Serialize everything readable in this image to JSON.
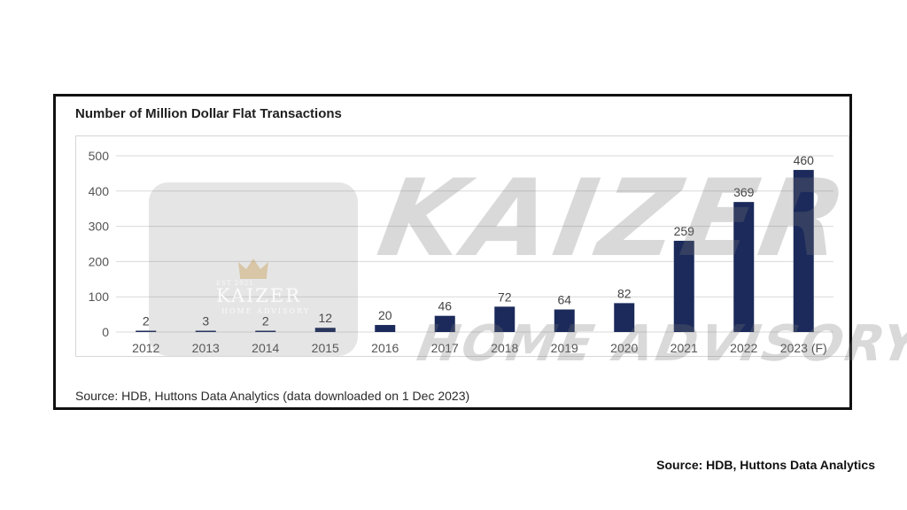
{
  "chart_data": {
    "type": "bar",
    "title": "Number of Million Dollar Flat Transactions",
    "categories": [
      "2012",
      "2013",
      "2014",
      "2015",
      "2016",
      "2017",
      "2018",
      "2019",
      "2020",
      "2021",
      "2022",
      "2023 (F)"
    ],
    "values": [
      2,
      3,
      2,
      12,
      20,
      46,
      72,
      64,
      82,
      259,
      369,
      460
    ],
    "yticks": [
      "0",
      "100",
      "200",
      "300",
      "400",
      "500"
    ],
    "ylim": [
      0,
      500
    ],
    "grid": true,
    "legend": "none",
    "bar_color": "#1b2a5a",
    "source": "Source: HDB, Huttons Data Analytics (data downloaded on 1 Dec 2023)"
  },
  "caption": "Source: HDB, Huttons Data Analytics",
  "watermark": {
    "brand": "KAIZER",
    "sub": "HOME ADVISORY",
    "est": "EST    2021",
    "big": "KAIZER",
    "big_sub": "HOME ADVISORY"
  }
}
